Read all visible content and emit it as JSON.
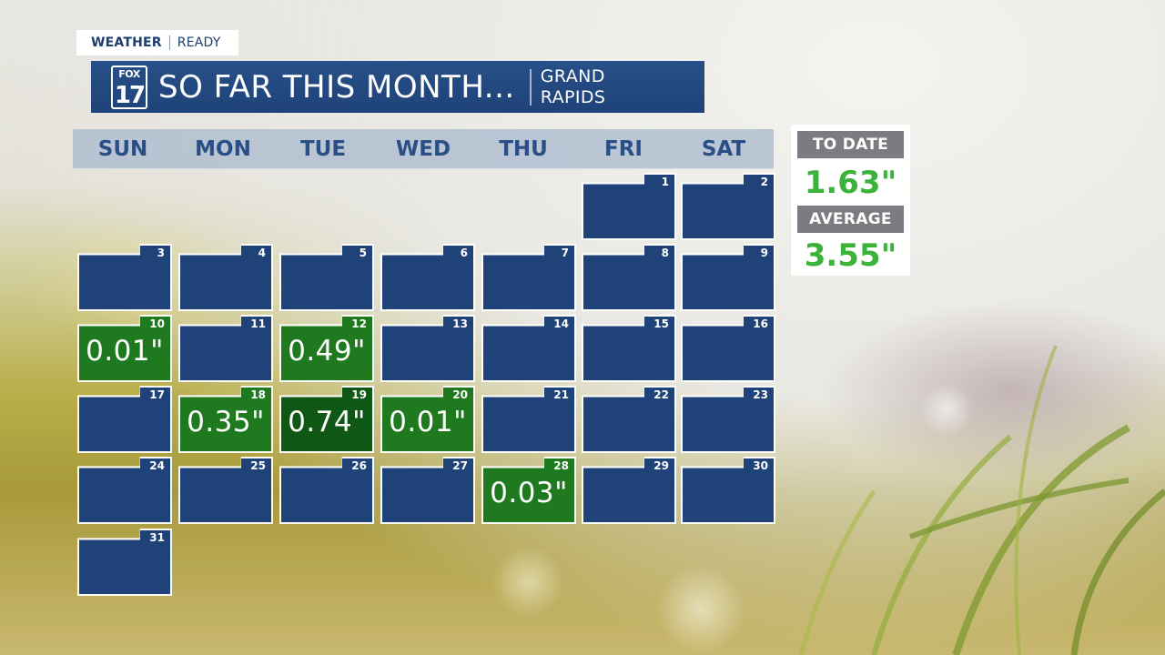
{
  "header": {
    "tag_left": "WEATHER",
    "tag_right": "READY",
    "logo_top": "FOX",
    "logo_bottom": "17",
    "title": "SO FAR THIS MONTH...",
    "location_line1": "GRAND",
    "location_line2": "RAPIDS"
  },
  "weekdays": [
    "SUN",
    "MON",
    "TUE",
    "WED",
    "THU",
    "FRI",
    "SAT"
  ],
  "days": [
    {
      "day": "1",
      "amount": ""
    },
    {
      "day": "2",
      "amount": ""
    },
    {
      "day": "3",
      "amount": ""
    },
    {
      "day": "4",
      "amount": ""
    },
    {
      "day": "5",
      "amount": ""
    },
    {
      "day": "6",
      "amount": ""
    },
    {
      "day": "7",
      "amount": ""
    },
    {
      "day": "8",
      "amount": ""
    },
    {
      "day": "9",
      "amount": ""
    },
    {
      "day": "10",
      "amount": "0.01\""
    },
    {
      "day": "11",
      "amount": ""
    },
    {
      "day": "12",
      "amount": "0.49\""
    },
    {
      "day": "13",
      "amount": ""
    },
    {
      "day": "14",
      "amount": ""
    },
    {
      "day": "15",
      "amount": ""
    },
    {
      "day": "16",
      "amount": ""
    },
    {
      "day": "17",
      "amount": ""
    },
    {
      "day": "18",
      "amount": "0.35\""
    },
    {
      "day": "19",
      "amount": "0.74\""
    },
    {
      "day": "20",
      "amount": "0.01\""
    },
    {
      "day": "21",
      "amount": ""
    },
    {
      "day": "22",
      "amount": ""
    },
    {
      "day": "23",
      "amount": ""
    },
    {
      "day": "24",
      "amount": ""
    },
    {
      "day": "25",
      "amount": ""
    },
    {
      "day": "26",
      "amount": ""
    },
    {
      "day": "27",
      "amount": ""
    },
    {
      "day": "28",
      "amount": "0.03\""
    },
    {
      "day": "29",
      "amount": ""
    },
    {
      "day": "30",
      "amount": ""
    },
    {
      "day": "31",
      "amount": ""
    }
  ],
  "first_weekday_index": 5,
  "totals": {
    "to_date_label": "TO DATE",
    "to_date_value": "1.63\"",
    "average_label": "AVERAGE",
    "average_value": "3.55\""
  },
  "colors": {
    "cell_blue": "#1f4379",
    "rain_green": "#1f7a1f",
    "rain_green_dark": "#0f5714",
    "total_green": "#3bb33b",
    "label_gray": "#7d7a80"
  }
}
